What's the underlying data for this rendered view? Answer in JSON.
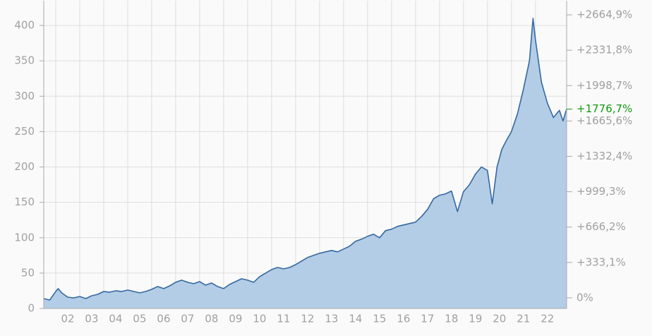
{
  "chart_data": {
    "type": "area",
    "x": [
      2001.5,
      2001.75,
      2002.0,
      2002.1,
      2002.25,
      2002.5,
      2002.75,
      2003.0,
      2003.25,
      2003.5,
      2003.75,
      2004.0,
      2004.25,
      2004.5,
      2004.75,
      2005.0,
      2005.25,
      2005.5,
      2005.75,
      2006.0,
      2006.25,
      2006.5,
      2006.75,
      2007.0,
      2007.25,
      2007.5,
      2007.75,
      2008.0,
      2008.25,
      2008.5,
      2008.75,
      2009.0,
      2009.25,
      2009.5,
      2009.75,
      2010.0,
      2010.25,
      2010.5,
      2010.75,
      2011.0,
      2011.25,
      2011.5,
      2011.75,
      2012.0,
      2012.25,
      2012.5,
      2012.75,
      2013.0,
      2013.25,
      2013.5,
      2013.75,
      2014.0,
      2014.25,
      2014.5,
      2014.75,
      2015.0,
      2015.25,
      2015.5,
      2015.75,
      2016.0,
      2016.25,
      2016.5,
      2016.75,
      2017.0,
      2017.25,
      2017.5,
      2017.75,
      2018.0,
      2018.25,
      2018.5,
      2018.75,
      2019.0,
      2019.25,
      2019.5,
      2019.75,
      2020.0,
      2020.2,
      2020.4,
      2020.6,
      2020.75,
      2021.0,
      2021.25,
      2021.5,
      2021.75,
      2021.9,
      2022.0,
      2022.25,
      2022.5,
      2022.75,
      2023.0,
      2023.15,
      2023.3
    ],
    "values": [
      14,
      12,
      24,
      28,
      22,
      16,
      15,
      17,
      14,
      18,
      20,
      24,
      23,
      25,
      24,
      26,
      24,
      22,
      24,
      27,
      31,
      28,
      32,
      37,
      40,
      37,
      35,
      38,
      33,
      36,
      31,
      28,
      34,
      38,
      42,
      40,
      37,
      45,
      50,
      55,
      58,
      56,
      58,
      62,
      67,
      72,
      75,
      78,
      80,
      82,
      80,
      84,
      88,
      95,
      98,
      102,
      105,
      100,
      110,
      112,
      116,
      118,
      120,
      122,
      130,
      140,
      155,
      160,
      162,
      166,
      137,
      165,
      175,
      190,
      200,
      195,
      148,
      200,
      225,
      235,
      250,
      275,
      310,
      350,
      410,
      380,
      320,
      290,
      270,
      280,
      265,
      282
    ],
    "color": "#3569a0",
    "fill": "#b3cde6",
    "xlim": [
      2001.5,
      2023.3
    ],
    "xticks": [
      {
        "value": 2002,
        "label": "02"
      },
      {
        "value": 2003,
        "label": "03"
      },
      {
        "value": 2004,
        "label": "04"
      },
      {
        "value": 2005,
        "label": "05"
      },
      {
        "value": 2006,
        "label": "06"
      },
      {
        "value": 2007,
        "label": "07"
      },
      {
        "value": 2008,
        "label": "08"
      },
      {
        "value": 2009,
        "label": "09"
      },
      {
        "value": 2010,
        "label": "10"
      },
      {
        "value": 2011,
        "label": "11"
      },
      {
        "value": 2012,
        "label": "12"
      },
      {
        "value": 2013,
        "label": "13"
      },
      {
        "value": 2014,
        "label": "14"
      },
      {
        "value": 2015,
        "label": "15"
      },
      {
        "value": 2016,
        "label": "16"
      },
      {
        "value": 2017,
        "label": "17"
      },
      {
        "value": 2018,
        "label": "18"
      },
      {
        "value": 2019,
        "label": "19"
      },
      {
        "value": 2020,
        "label": "20"
      },
      {
        "value": 2021,
        "label": "21"
      },
      {
        "value": 2022,
        "label": "22"
      }
    ],
    "ylim": [
      0,
      435
    ],
    "yticks": [
      0,
      50,
      100,
      150,
      200,
      250,
      300,
      350,
      400
    ],
    "y2lim": [
      -100,
      2798
    ],
    "y2ticks": [
      {
        "value": 0,
        "label": "0%"
      },
      {
        "value": 333.1,
        "label": "+333,1%"
      },
      {
        "value": 666.2,
        "label": "+666,2%"
      },
      {
        "value": 999.3,
        "label": "+999,3%"
      },
      {
        "value": 1332.4,
        "label": "+1332,4%"
      },
      {
        "value": 1665.6,
        "label": "+1665,6%"
      },
      {
        "value": 1998.7,
        "label": "+1998,7%"
      },
      {
        "value": 2331.8,
        "label": "+2331,8%"
      },
      {
        "value": 2664.9,
        "label": "+2664,9%"
      }
    ],
    "last_value": {
      "value": 1776.7,
      "label": "+1776,7%",
      "color": "#119911"
    },
    "grid": true
  }
}
